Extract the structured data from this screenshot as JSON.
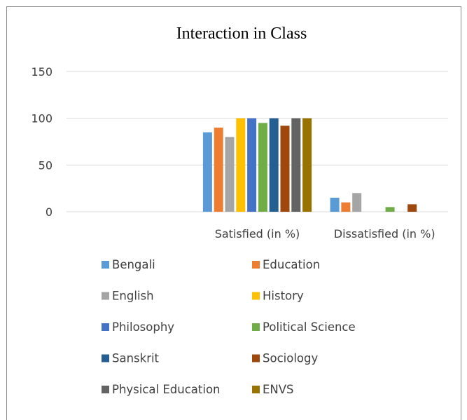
{
  "chart_data": {
    "type": "bar",
    "title": "Interaction in Class",
    "categories": [
      "",
      "Satisfied (in %)",
      "Dissatisfied (in %)"
    ],
    "ylim": [
      0,
      150
    ],
    "yticks": [
      0,
      50,
      100,
      150
    ],
    "grid": true,
    "legend_position": "bottom",
    "series": [
      {
        "name": "Bengali",
        "color": "#5B9BD5",
        "values": [
          null,
          85,
          15
        ]
      },
      {
        "name": "Education",
        "color": "#ED7D31",
        "values": [
          null,
          90,
          10
        ]
      },
      {
        "name": "English",
        "color": "#A5A5A5",
        "values": [
          null,
          80,
          20
        ]
      },
      {
        "name": "History",
        "color": "#FFC000",
        "values": [
          null,
          100,
          0
        ]
      },
      {
        "name": "Philosophy",
        "color": "#4472C4",
        "values": [
          null,
          100,
          0
        ]
      },
      {
        "name": "Political Science",
        "color": "#70AD47",
        "values": [
          null,
          95,
          5
        ]
      },
      {
        "name": "Sanskrit",
        "color": "#255E91",
        "values": [
          null,
          100,
          0
        ]
      },
      {
        "name": "Sociology",
        "color": "#9E480E",
        "values": [
          null,
          92,
          8
        ]
      },
      {
        "name": "Physical Education",
        "color": "#636363",
        "values": [
          null,
          100,
          0
        ]
      },
      {
        "name": "ENVS",
        "color": "#997300",
        "values": [
          null,
          100,
          0
        ]
      }
    ]
  }
}
